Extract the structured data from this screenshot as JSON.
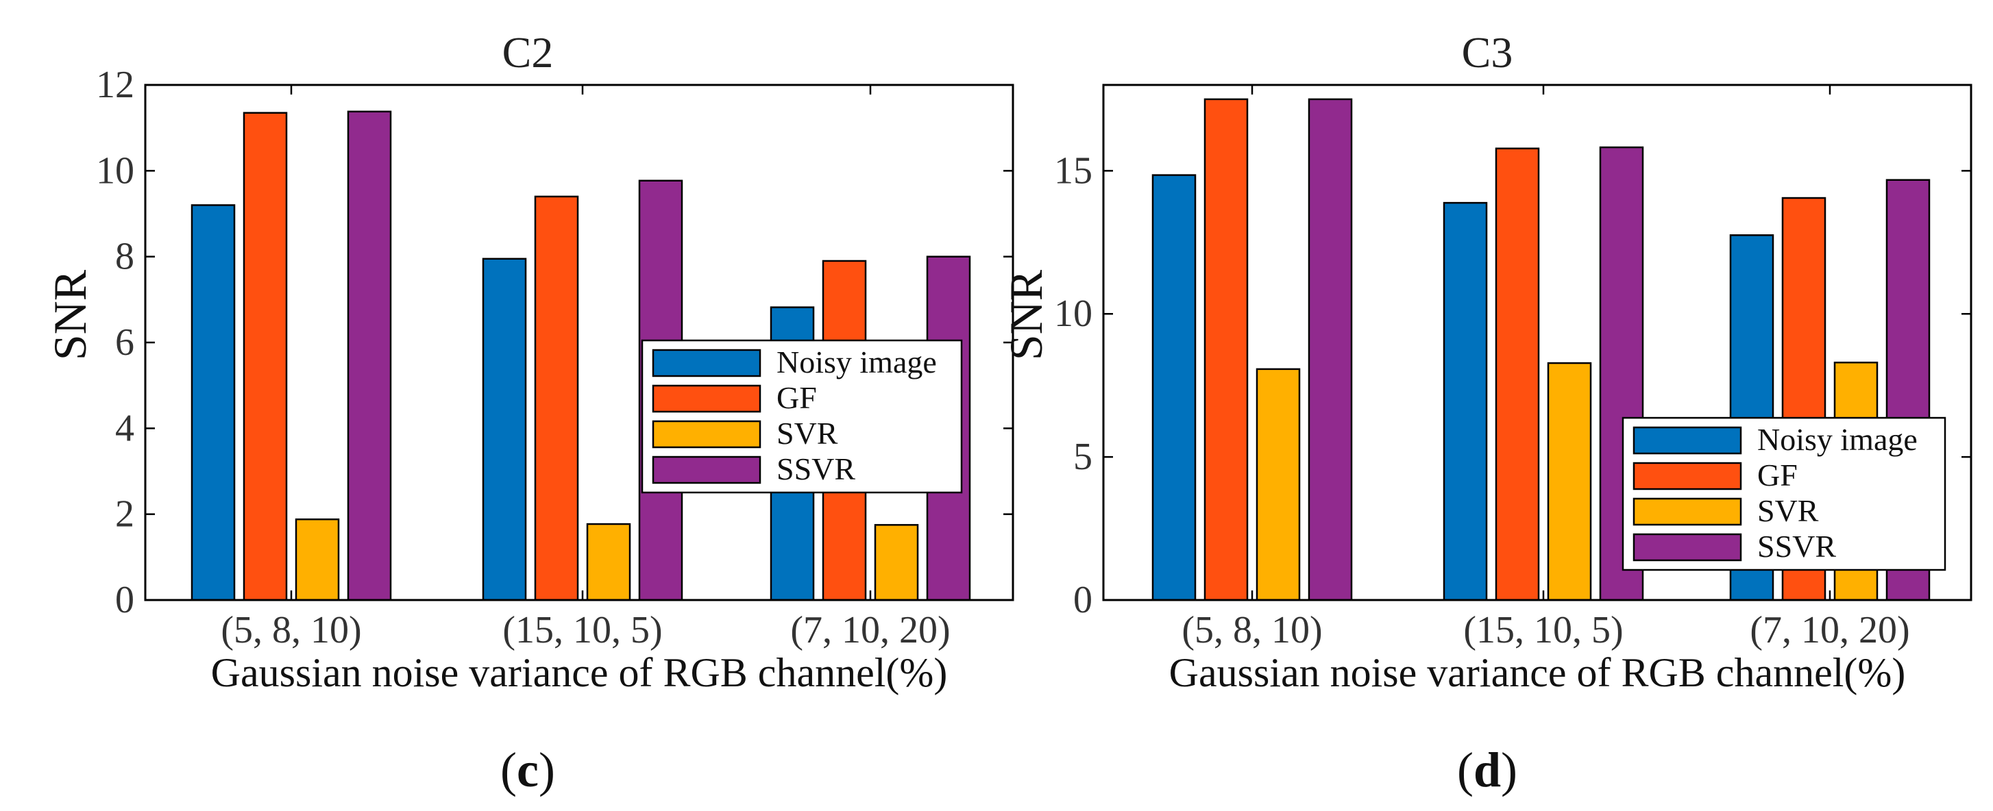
{
  "colors": {
    "series": [
      "#0072BD",
      "#FF5010",
      "#FFB000",
      "#912A8E"
    ],
    "axis": "#000000",
    "text": "#222222"
  },
  "chart_data": [
    {
      "type": "bar",
      "title": "C2",
      "xlabel": "Gaussian noise variance of RGB channel(%)",
      "ylabel": "SNR",
      "categories": [
        "(5, 8, 10)",
        "(15, 10, 5)",
        "(7, 10, 20)"
      ],
      "ylim": [
        0,
        12
      ],
      "yticks": [
        0,
        2,
        4,
        6,
        8,
        10,
        12
      ],
      "grid": false,
      "legend_position": "center-right",
      "series": [
        {
          "name": "Noisy image",
          "values": [
            9.2,
            7.95,
            6.82
          ]
        },
        {
          "name": "GF",
          "values": [
            11.35,
            9.4,
            7.9
          ]
        },
        {
          "name": "SVR",
          "values": [
            1.88,
            1.77,
            1.75
          ]
        },
        {
          "name": "SSVR",
          "values": [
            11.38,
            9.77,
            8.0
          ]
        }
      ],
      "panel_label": {
        "open": "(",
        "letter": "c",
        "close": ")"
      }
    },
    {
      "type": "bar",
      "title": "C3",
      "xlabel": "Gaussian noise variance of RGB channel(%)",
      "ylabel": "SNR",
      "categories": [
        "(5, 8, 10)",
        "(15, 10, 5)",
        "(7, 10, 20)"
      ],
      "ylim": [
        0,
        18
      ],
      "yticks": [
        0,
        5,
        10,
        15
      ],
      "grid": false,
      "legend_position": "bottom-right",
      "series": [
        {
          "name": "Noisy image",
          "values": [
            14.85,
            13.88,
            12.75
          ]
        },
        {
          "name": "GF",
          "values": [
            17.5,
            15.78,
            14.05
          ]
        },
        {
          "name": "SVR",
          "values": [
            8.07,
            8.28,
            8.3
          ]
        },
        {
          "name": "SSVR",
          "values": [
            17.5,
            15.82,
            14.68
          ]
        }
      ],
      "panel_label": {
        "open": "(",
        "letter": "d",
        "close": ")"
      }
    }
  ]
}
